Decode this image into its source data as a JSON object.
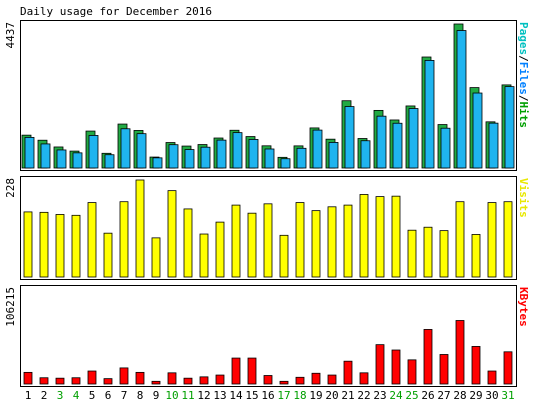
{
  "chart_data": {
    "type": "bar",
    "title": "Daily usage for December 2016",
    "categories": [
      "1",
      "2",
      "3",
      "4",
      "5",
      "6",
      "7",
      "8",
      "9",
      "10",
      "11",
      "12",
      "13",
      "14",
      "15",
      "16",
      "17",
      "18",
      "19",
      "20",
      "21",
      "22",
      "23",
      "24",
      "25",
      "26",
      "27",
      "28",
      "29",
      "30",
      "31"
    ],
    "weekend_days": [
      "3",
      "4",
      "10",
      "11",
      "17",
      "18",
      "24",
      "25",
      "31"
    ],
    "panels": [
      {
        "id": "hits",
        "ymax_label": "4437",
        "ylim": [
          0,
          4437
        ],
        "legend": [
          {
            "text": "Pages",
            "color": "#00c0c0"
          },
          {
            "text": "/",
            "color": "#000000"
          },
          {
            "text": "Files",
            "color": "#0080ff"
          },
          {
            "text": "/",
            "color": "#000000"
          },
          {
            "text": "Hits",
            "color": "#00a000"
          }
        ],
        "series": [
          {
            "name": "Hits",
            "color": "#22aa44",
            "values": [
              1012,
              856,
              648,
              521,
              1138,
              453,
              1354,
              1157,
              337,
              785,
              676,
              723,
              924,
              1163,
              969,
              684,
              329,
              682,
              1235,
              888,
              2073,
              909,
              1775,
              1480,
              1912,
              3420,
              1339,
              4437,
              2478,
              1423,
              2561
            ]
          },
          {
            "name": "Files",
            "color": "#0080ff",
            "values": [
              943,
              742,
              556,
              467,
              1003,
              409,
              1209,
              1058,
              313,
              718,
              568,
              641,
              859,
              1090,
              880,
              586,
              286,
              607,
              1168,
              788,
              1893,
              840,
              1597,
              1379,
              1832,
              3315,
              1226,
              4236,
              2310,
              1382,
              2508
            ]
          },
          {
            "name": "Pages",
            "color": "#00c0c0",
            "values": [
              0,
              0,
              0,
              0,
              0,
              0,
              0,
              0,
              0,
              0,
              0,
              0,
              0,
              0,
              0,
              0,
              0,
              0,
              0,
              0,
              0,
              0,
              0,
              0,
              0,
              0,
              0,
              0,
              0,
              0,
              0
            ]
          }
        ]
      },
      {
        "id": "visits",
        "ymax_label": "228",
        "ylim": [
          0,
          228
        ],
        "legend": [
          {
            "text": "Visits",
            "color": "#e8e800"
          }
        ],
        "series": [
          {
            "name": "Visits",
            "color": "#ffff00",
            "values": [
              153,
              152,
              147,
              145,
              175,
              103,
              177,
              228,
              92,
              203,
              160,
              101,
              129,
              169,
              150,
              172,
              98,
              175,
              156,
              165,
              169,
              194,
              189,
              190,
              110,
              117,
              109,
              177,
              100,
              175,
              177
            ]
          }
        ]
      },
      {
        "id": "kbytes",
        "ymax_label": "106215",
        "ylim": [
          0,
          106215
        ],
        "legend": [
          {
            "text": "KBytes",
            "color": "#ff0000"
          }
        ],
        "series": [
          {
            "name": "KBytes",
            "color": "#ff0000",
            "values": [
              13000,
              7000,
              6500,
              7000,
              14500,
              6000,
              18000,
              13000,
              3000,
              12500,
              6500,
              8000,
              10000,
              29000,
              29000,
              9500,
              3000,
              7500,
              12000,
              10000,
              25500,
              12500,
              44000,
              38000,
              27000,
              61000,
              33000,
              71000,
              42000,
              14500,
              36000
            ]
          }
        ]
      }
    ]
  }
}
